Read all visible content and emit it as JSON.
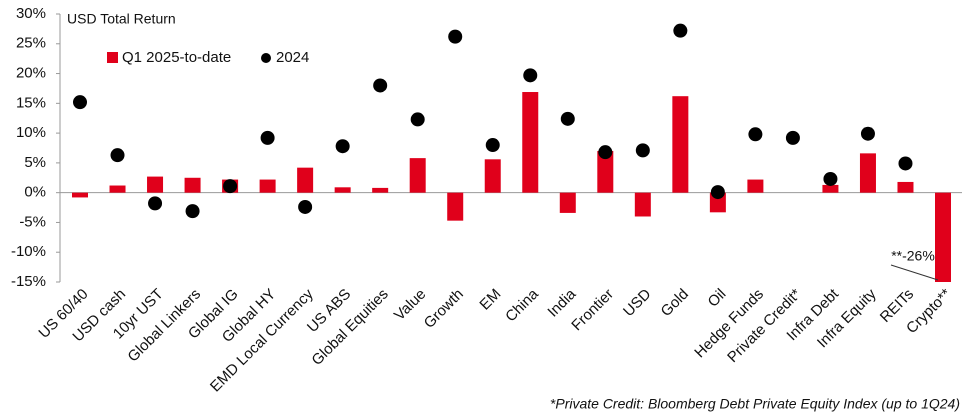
{
  "chart_data": {
    "type": "bar",
    "title": "USD Total Return",
    "footnote": "*Private Credit: Bloomberg Debt Private Equity Index (up to 1Q24)",
    "categories": [
      "US 60/40",
      "USD cash",
      "10yr UST",
      "Global Linkers",
      "Global IG",
      "Global HY",
      "EMD Local Currency",
      "US ABS",
      "Global Equities",
      "Value",
      "Growth",
      "EM",
      "China",
      "India",
      "Frontier",
      "USD",
      "Gold",
      "Oil",
      "Hedge Funds",
      "Private Credit*",
      "Infra Debt",
      "Infra Equity",
      "REITs",
      "Crypto**"
    ],
    "series": [
      {
        "name": "Q1 2025-to-date",
        "type": "bar",
        "color": "#e0001b",
        "values": [
          -0.8,
          1.2,
          2.7,
          2.5,
          2.2,
          2.2,
          4.2,
          0.9,
          0.8,
          5.8,
          -4.7,
          5.6,
          16.9,
          -3.4,
          7.0,
          -4.0,
          16.2,
          -3.3,
          2.2,
          null,
          1.3,
          6.6,
          1.8,
          -26
        ],
        "value_labels": [
          null,
          null,
          null,
          null,
          null,
          null,
          null,
          null,
          null,
          null,
          null,
          null,
          null,
          null,
          null,
          null,
          null,
          null,
          null,
          null,
          null,
          null,
          null,
          "**-26%"
        ]
      },
      {
        "name": "2024",
        "type": "scatter",
        "color": "#000000",
        "values": [
          15.2,
          6.3,
          -1.8,
          -3.1,
          1.1,
          9.2,
          -2.4,
          7.8,
          18.0,
          12.3,
          26.2,
          8.0,
          19.7,
          12.4,
          6.8,
          7.1,
          27.2,
          0.1,
          9.8,
          9.2,
          2.3,
          9.9,
          4.9,
          null
        ]
      }
    ],
    "ylim": [
      -15,
      30
    ],
    "yticks": [
      {
        "value": 30,
        "label": "30%"
      },
      {
        "value": 25,
        "label": "25%"
      },
      {
        "value": 20,
        "label": "20%"
      },
      {
        "value": 15,
        "label": "15%"
      },
      {
        "value": 10,
        "label": "10%"
      },
      {
        "value": 5,
        "label": "5%"
      },
      {
        "value": 0,
        "label": "0%"
      },
      {
        "value": -5,
        "label": "-5%"
      },
      {
        "value": -10,
        "label": "-10%"
      },
      {
        "value": -15,
        "label": "-15%"
      }
    ],
    "grid": false,
    "legend": "top-left"
  }
}
